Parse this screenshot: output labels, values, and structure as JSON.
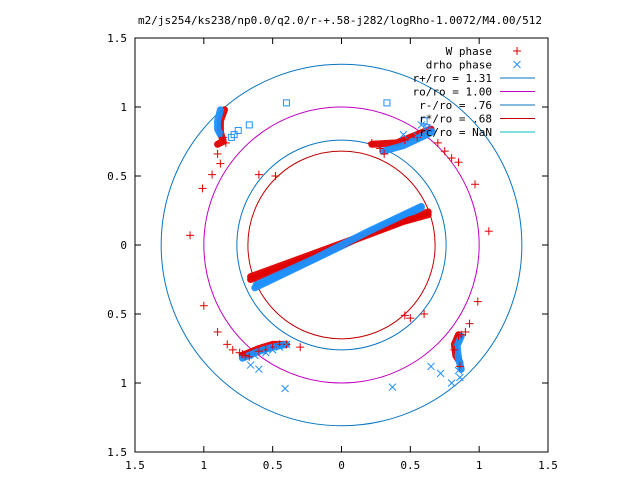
{
  "chart_data": {
    "type": "scatter",
    "title": "m2/js254/ks238/np0.0/q2.0/r-+.58-j282/logRho-1.0072/M4.00/512",
    "xlim": [
      -1.5,
      1.5
    ],
    "ylim": [
      -1.5,
      1.5
    ],
    "x_ticks": [
      -1.5,
      -1,
      -0.5,
      0,
      0.5,
      1,
      1.5
    ],
    "x_tick_labels": [
      "1.5",
      "1",
      "0.5",
      "0",
      "0.5",
      "1",
      "1.5"
    ],
    "y_ticks": [
      1.5,
      1,
      0.5,
      0,
      -0.5,
      -1,
      -1.5
    ],
    "y_tick_labels": [
      "1.5",
      "1",
      "0.5",
      "0",
      "0.5",
      "1",
      "1.5"
    ],
    "grid": false,
    "legend_position": "top-right",
    "colors": {
      "w_phase": "#e00000",
      "drho_phase": "#1e90ff",
      "r_plus": "#0a75c0",
      "r_o": "#c000c0",
      "r_minus": "#0a75c0",
      "r_star": "#c00000",
      "r_c": "#00c0c0"
    },
    "circles": [
      {
        "label": "r+/ro = 1.31",
        "radius": 1.31,
        "color_key": "r_plus"
      },
      {
        "label": "ro/ro = 1.00",
        "radius": 1.0,
        "color_key": "r_o"
      },
      {
        "label": "r-/ro = .76",
        "radius": 0.76,
        "color_key": "r_minus"
      },
      {
        "label": "r*/ro = .68",
        "radius": 0.68,
        "color_key": "r_star"
      },
      {
        "label": "rc/ro = NaN",
        "radius": null,
        "color_key": "r_c"
      }
    ],
    "series": [
      {
        "name": "W phase",
        "marker": "plus",
        "color_key": "w_phase",
        "points": [
          [
            -1.01,
            0.41
          ],
          [
            -1.1,
            0.07
          ],
          [
            -1.0,
            -0.44
          ],
          [
            -0.9,
            -0.63
          ],
          [
            -0.83,
            -0.72
          ],
          [
            -0.79,
            -0.76
          ],
          [
            -0.74,
            -0.78
          ],
          [
            -0.72,
            -0.79
          ],
          [
            -0.7,
            -0.8
          ],
          [
            -0.67,
            -0.81
          ],
          [
            -0.6,
            -0.77
          ],
          [
            -0.55,
            -0.76
          ],
          [
            -0.5,
            -0.74
          ],
          [
            -0.45,
            -0.72
          ],
          [
            -0.4,
            -0.72
          ],
          [
            -0.3,
            -0.74
          ],
          [
            -0.84,
            0.74
          ],
          [
            -0.86,
            0.78
          ],
          [
            -0.9,
            0.66
          ],
          [
            -0.88,
            0.59
          ],
          [
            -0.94,
            0.51
          ],
          [
            -0.6,
            0.51
          ],
          [
            -0.48,
            0.5
          ],
          [
            0.28,
            0.7
          ],
          [
            0.22,
            0.74
          ],
          [
            0.31,
            0.66
          ],
          [
            0.46,
            0.76
          ],
          [
            0.55,
            0.78
          ],
          [
            0.7,
            0.74
          ],
          [
            0.75,
            0.68
          ],
          [
            0.8,
            0.63
          ],
          [
            0.85,
            0.6
          ],
          [
            0.97,
            0.44
          ],
          [
            1.07,
            0.1
          ],
          [
            0.99,
            -0.41
          ],
          [
            0.93,
            -0.57
          ],
          [
            0.9,
            -0.63
          ],
          [
            0.87,
            -0.65
          ],
          [
            0.85,
            -0.66
          ],
          [
            0.6,
            -0.5
          ],
          [
            0.46,
            -0.51
          ],
          [
            0.5,
            -0.53
          ],
          [
            0.86,
            -0.88
          ],
          [
            0.82,
            -0.76
          ]
        ]
      },
      {
        "name": "drho phase",
        "marker": "cross",
        "color_key": "drho_phase",
        "points": [
          [
            -0.41,
            -1.04
          ],
          [
            0.37,
            -1.03
          ],
          [
            0.65,
            -0.88
          ],
          [
            0.72,
            -0.93
          ],
          [
            0.8,
            -1.0
          ],
          [
            0.86,
            -0.96
          ],
          [
            0.85,
            -0.91
          ],
          [
            -0.66,
            -0.87
          ],
          [
            -0.6,
            -0.9
          ],
          [
            -0.63,
            -0.8
          ],
          [
            -0.55,
            -0.78
          ],
          [
            -0.5,
            -0.76
          ],
          [
            -0.45,
            -0.74
          ],
          [
            -0.4,
            -0.72
          ],
          [
            0.45,
            0.8
          ],
          [
            0.55,
            0.79
          ],
          [
            0.62,
            0.85
          ],
          [
            0.58,
            0.87
          ]
        ]
      }
    ],
    "curves": [
      {
        "color_key": "w_phase",
        "points": [
          [
            -0.66,
            -0.23
          ],
          [
            0.63,
            0.24
          ]
        ]
      },
      {
        "color_key": "drho_phase",
        "points": [
          [
            -0.63,
            -0.31
          ],
          [
            0.58,
            0.27
          ]
        ]
      },
      {
        "color_key": "w_phase",
        "points": [
          [
            -0.66,
            -0.25
          ],
          [
            -0.2,
            -0.08
          ],
          [
            0.1,
            0.04
          ],
          [
            0.45,
            0.17
          ],
          [
            0.63,
            0.22
          ]
        ]
      },
      {
        "color_key": "drho_phase",
        "points": [
          [
            -0.62,
            -0.29
          ],
          [
            -0.2,
            -0.1
          ],
          [
            0.2,
            0.1
          ],
          [
            0.58,
            0.28
          ]
        ]
      },
      {
        "color_key": "w_phase",
        "points": [
          [
            -0.85,
            0.98
          ],
          [
            -0.88,
            0.9
          ],
          [
            -0.88,
            0.82
          ],
          [
            -0.86,
            0.75
          ],
          [
            -0.9,
            0.73
          ]
        ]
      },
      {
        "color_key": "drho_phase",
        "points": [
          [
            -0.88,
            0.98
          ],
          [
            -0.9,
            0.9
          ],
          [
            -0.9,
            0.84
          ],
          [
            -0.88,
            0.8
          ]
        ]
      },
      {
        "color_key": "w_phase",
        "points": [
          [
            0.22,
            0.73
          ],
          [
            0.4,
            0.74
          ],
          [
            0.6,
            0.82
          ],
          [
            0.65,
            0.84
          ]
        ]
      },
      {
        "color_key": "drho_phase",
        "points": [
          [
            0.3,
            0.68
          ],
          [
            0.45,
            0.72
          ],
          [
            0.62,
            0.8
          ],
          [
            0.66,
            0.82
          ]
        ]
      },
      {
        "color_key": "w_phase",
        "points": [
          [
            -0.72,
            -0.8
          ],
          [
            -0.6,
            -0.75
          ],
          [
            -0.5,
            -0.72
          ],
          [
            -0.4,
            -0.72
          ]
        ]
      },
      {
        "color_key": "drho_phase",
        "points": [
          [
            -0.72,
            -0.82
          ],
          [
            -0.6,
            -0.77
          ],
          [
            -0.5,
            -0.74
          ],
          [
            -0.4,
            -0.72
          ]
        ]
      },
      {
        "color_key": "w_phase",
        "points": [
          [
            0.85,
            -0.65
          ],
          [
            0.82,
            -0.72
          ],
          [
            0.83,
            -0.8
          ],
          [
            0.86,
            -0.85
          ]
        ]
      },
      {
        "color_key": "drho_phase",
        "points": [
          [
            0.87,
            -0.66
          ],
          [
            0.84,
            -0.73
          ],
          [
            0.85,
            -0.82
          ],
          [
            0.87,
            -0.9
          ]
        ]
      }
    ],
    "squares": [
      {
        "color_key": "drho_phase",
        "points": [
          [
            -0.4,
            1.03
          ],
          [
            0.33,
            1.03
          ],
          [
            -0.67,
            0.87
          ],
          [
            -0.75,
            0.83
          ],
          [
            -0.78,
            0.8
          ],
          [
            -0.8,
            0.78
          ],
          [
            0.6,
            0.9
          ],
          [
            0.62,
            0.85
          ]
        ]
      }
    ]
  }
}
